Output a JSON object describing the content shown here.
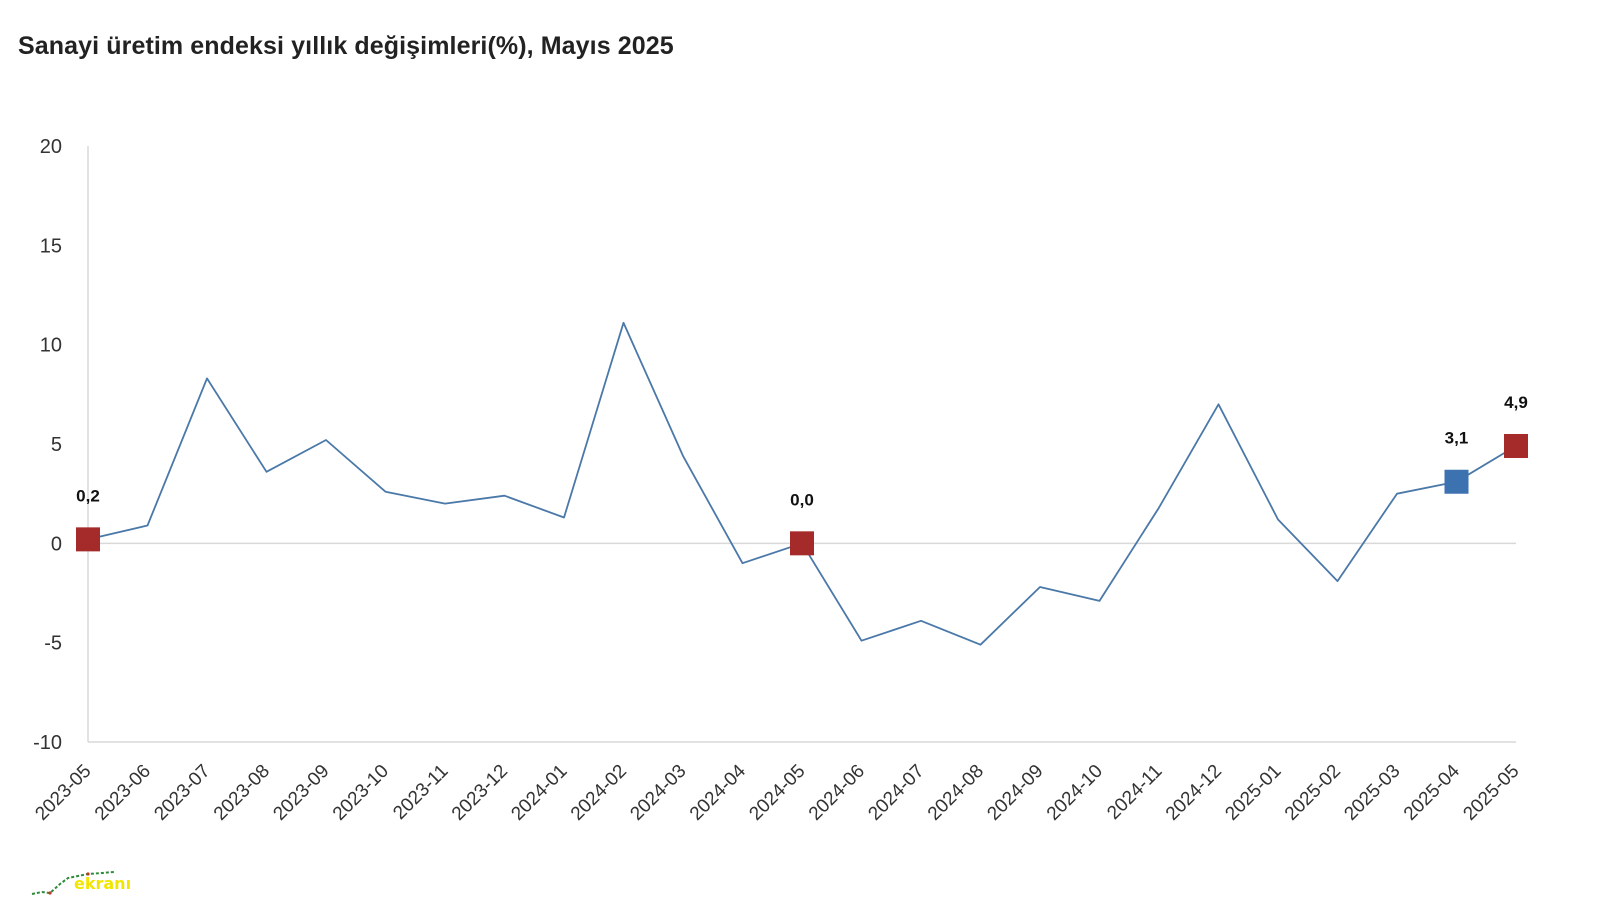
{
  "title": "Sanayi üretim endeksi yıllık değişimleri(%), Mayıs 2025",
  "colors": {
    "line": "#4a78a8",
    "marker_red": "#a52a2a",
    "marker_blue": "#3d72b0",
    "axis": "#d9d9d9"
  },
  "logo": {
    "text": "ekranı"
  },
  "chart_data": {
    "type": "line",
    "title": "Sanayi üretim endeksi yıllık değişimleri(%), Mayıs 2025",
    "xlabel": "",
    "ylabel": "",
    "ylim": [
      -10,
      20
    ],
    "yticks": [
      20,
      15,
      10,
      5,
      0,
      -5,
      -10
    ],
    "grid": false,
    "legend": "none",
    "categories": [
      "2023-05",
      "2023-06",
      "2023-07",
      "2023-08",
      "2023-09",
      "2023-10",
      "2023-11",
      "2023-12",
      "2024-01",
      "2024-02",
      "2024-03",
      "2024-04",
      "2024-05",
      "2024-06",
      "2024-07",
      "2024-08",
      "2024-09",
      "2024-10",
      "2024-11",
      "2024-12",
      "2025-01",
      "2025-02",
      "2025-03",
      "2025-04",
      "2025-05"
    ],
    "series": [
      {
        "values": [
          0.2,
          0.9,
          8.3,
          3.6,
          5.2,
          2.6,
          2.0,
          2.4,
          1.3,
          11.1,
          4.4,
          -1.0,
          0.0,
          -4.9,
          -3.9,
          -5.1,
          -2.2,
          -2.9,
          1.8,
          7.0,
          1.2,
          -1.9,
          2.5,
          3.1,
          4.9
        ]
      }
    ],
    "highlighted_points": [
      {
        "category": "2023-05",
        "value": 0.2,
        "label": "0,2",
        "color": "#a52a2a"
      },
      {
        "category": "2024-05",
        "value": 0.0,
        "label": "0,0",
        "color": "#a52a2a"
      },
      {
        "category": "2025-04",
        "value": 3.1,
        "label": "3,1",
        "color": "#3d72b0"
      },
      {
        "category": "2025-05",
        "value": 4.9,
        "label": "4,9",
        "color": "#a52a2a"
      }
    ]
  }
}
